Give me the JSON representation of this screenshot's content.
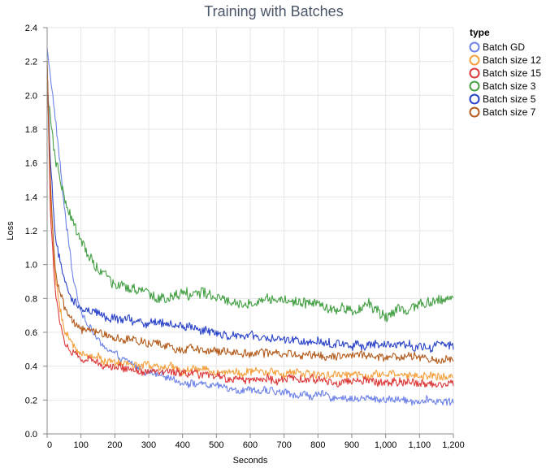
{
  "chart_data": {
    "type": "line",
    "title": "Training with Batches",
    "xlabel": "Seconds",
    "ylabel": "Loss",
    "xlim": [
      0,
      1200
    ],
    "ylim": [
      0,
      2.4
    ],
    "x_ticks": [
      0,
      100,
      200,
      300,
      400,
      500,
      600,
      700,
      800,
      900,
      1000,
      1100,
      1200
    ],
    "x_tick_labels": [
      "0",
      "100",
      "200",
      "300",
      "400",
      "500",
      "600",
      "700",
      "800",
      "900",
      "1,000",
      "1,100",
      "1,200"
    ],
    "y_ticks": [
      0,
      0.2,
      0.4,
      0.6,
      0.8,
      1.0,
      1.2,
      1.4,
      1.6,
      1.8,
      2.0,
      2.2,
      2.4
    ],
    "y_tick_labels": [
      "0.0",
      "0.2",
      "0.4",
      "0.6",
      "0.8",
      "1.0",
      "1.2",
      "1.4",
      "1.6",
      "1.8",
      "2.0",
      "2.2",
      "2.4"
    ],
    "grid": true,
    "legend": {
      "title": "type",
      "position": "right"
    },
    "series": [
      {
        "name": "Batch GD",
        "color": "#6d82e8",
        "x": [
          0,
          25,
          50,
          75,
          100,
          150,
          200,
          300,
          400,
          500,
          600,
          700,
          800,
          900,
          1000,
          1100,
          1200
        ],
        "y": [
          2.28,
          1.85,
          1.35,
          0.95,
          0.72,
          0.55,
          0.46,
          0.36,
          0.31,
          0.28,
          0.26,
          0.24,
          0.225,
          0.21,
          0.205,
          0.198,
          0.19
        ]
      },
      {
        "name": "Batch size 12",
        "color": "#f4a03c",
        "x": [
          0,
          10,
          25,
          50,
          75,
          100,
          150,
          200,
          300,
          400,
          500,
          600,
          700,
          800,
          900,
          1000,
          1100,
          1200
        ],
        "y": [
          2.22,
          1.4,
          0.9,
          0.62,
          0.52,
          0.48,
          0.45,
          0.42,
          0.4,
          0.38,
          0.37,
          0.365,
          0.36,
          0.355,
          0.35,
          0.35,
          0.345,
          0.34
        ]
      },
      {
        "name": "Batch size 15",
        "color": "#dc3a3a",
        "x": [
          0,
          10,
          25,
          50,
          75,
          100,
          150,
          200,
          300,
          400,
          500,
          600,
          700,
          800,
          900,
          1000,
          1100,
          1200
        ],
        "y": [
          2.2,
          1.3,
          0.8,
          0.55,
          0.47,
          0.44,
          0.42,
          0.4,
          0.37,
          0.35,
          0.335,
          0.325,
          0.32,
          0.315,
          0.31,
          0.305,
          0.3,
          0.295
        ]
      },
      {
        "name": "Batch size 3",
        "color": "#45a045",
        "x": [
          0,
          10,
          25,
          50,
          75,
          100,
          150,
          200,
          250,
          300,
          350,
          400,
          450,
          500,
          550,
          600,
          650,
          700,
          750,
          800,
          850,
          900,
          950,
          1000,
          1050,
          1100,
          1150,
          1200
        ],
        "y": [
          2.05,
          1.85,
          1.6,
          1.4,
          1.25,
          1.12,
          0.98,
          0.88,
          0.85,
          0.82,
          0.8,
          0.82,
          0.84,
          0.8,
          0.76,
          0.77,
          0.8,
          0.79,
          0.77,
          0.78,
          0.74,
          0.72,
          0.76,
          0.7,
          0.73,
          0.76,
          0.78,
          0.81
        ]
      },
      {
        "name": "Batch size 5",
        "color": "#2a43c8",
        "x": [
          0,
          10,
          25,
          50,
          75,
          100,
          150,
          200,
          300,
          400,
          500,
          600,
          700,
          800,
          900,
          1000,
          1100,
          1200
        ],
        "y": [
          2.15,
          1.6,
          1.15,
          0.9,
          0.78,
          0.74,
          0.7,
          0.68,
          0.66,
          0.64,
          0.6,
          0.57,
          0.55,
          0.54,
          0.53,
          0.52,
          0.52,
          0.52
        ]
      },
      {
        "name": "Batch size 7",
        "color": "#b35c1e",
        "x": [
          0,
          10,
          25,
          50,
          75,
          100,
          150,
          200,
          300,
          400,
          500,
          600,
          700,
          800,
          900,
          1000,
          1100,
          1200
        ],
        "y": [
          2.18,
          1.45,
          0.95,
          0.74,
          0.66,
          0.62,
          0.6,
          0.57,
          0.53,
          0.5,
          0.49,
          0.48,
          0.475,
          0.47,
          0.46,
          0.455,
          0.45,
          0.44
        ]
      }
    ]
  }
}
